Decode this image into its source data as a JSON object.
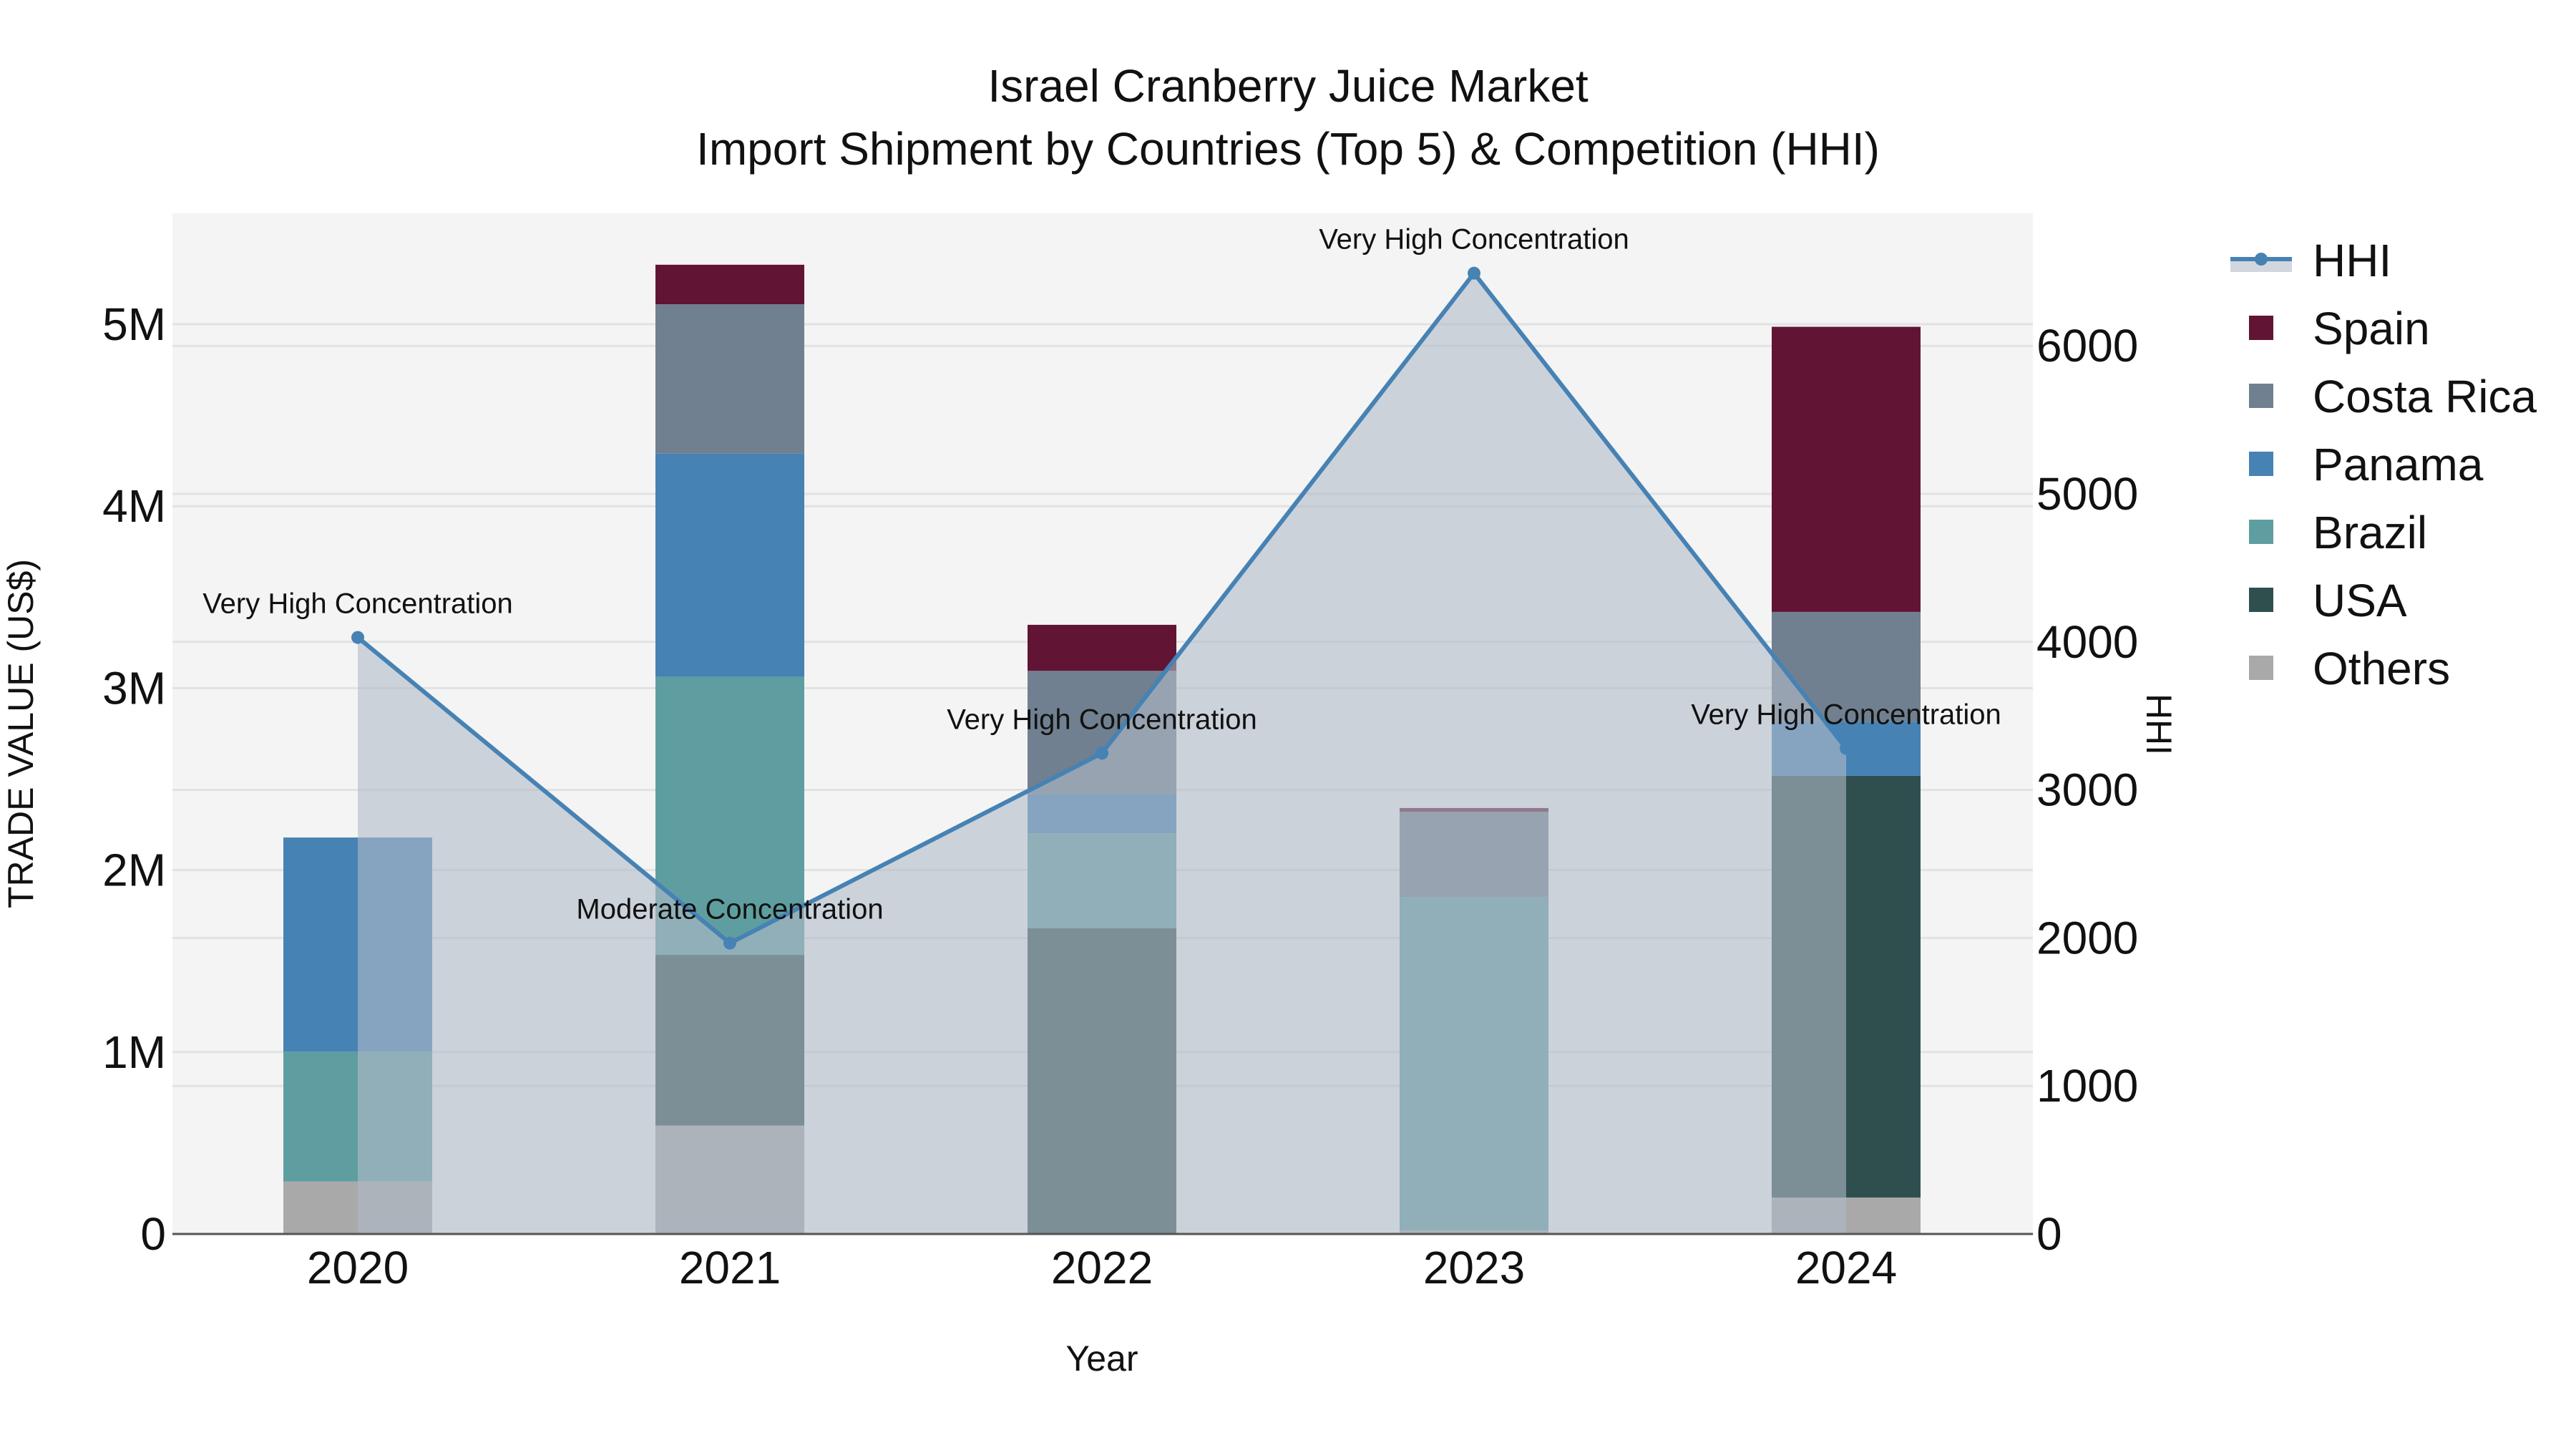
{
  "chart_data": {
    "type": "bar",
    "subtype": "stacked-bar-with-line-area",
    "title": "Israel Cranberry Juice Market",
    "subtitle": "Import Shipment by Countries (Top 5) & Competition (HHI)",
    "xlabel": "Year",
    "ylabel": "TRADE VALUE (US$)",
    "y2label": "HHI",
    "categories": [
      "2020",
      "2021",
      "2022",
      "2023",
      "2024"
    ],
    "ylim": [
      0,
      5600000
    ],
    "y_ticks": [
      0,
      1000000,
      2000000,
      3000000,
      4000000,
      5000000
    ],
    "y_tick_labels": [
      "0",
      "1M",
      "2M",
      "3M",
      "4M",
      "5M"
    ],
    "y2lim": [
      0,
      6900
    ],
    "y2_ticks": [
      0,
      1000,
      2000,
      3000,
      4000,
      5000,
      6000
    ],
    "y2_tick_labels": [
      "0",
      "1000",
      "2000",
      "3000",
      "4000",
      "5000",
      "6000"
    ],
    "grid": true,
    "legend_position": "right",
    "series": [
      {
        "name": "Others",
        "color": "#A9A9A9",
        "values": [
          288000,
          596000,
          0,
          20000,
          200000
        ]
      },
      {
        "name": "USA",
        "color": "#2F4F4F",
        "values": [
          0,
          938000,
          1680000,
          0,
          2318000
        ]
      },
      {
        "name": "Brazil",
        "color": "#5F9EA0",
        "values": [
          714000,
          1528000,
          522000,
          1832000,
          0
        ]
      },
      {
        "name": "Panama",
        "color": "#4682B4",
        "values": [
          1177000,
          1227000,
          216000,
          0,
          298000
        ]
      },
      {
        "name": "Costa Rica",
        "color": "#708090",
        "values": [
          0,
          821000,
          677000,
          469000,
          603000
        ]
      },
      {
        "name": "Spain",
        "color": "#611434",
        "values": [
          0,
          217000,
          253000,
          20000,
          1567000
        ]
      }
    ],
    "line_series": {
      "name": "HHI",
      "axis": "y2",
      "color": "#4682B4",
      "fill": "tozeroy",
      "values": [
        4030,
        1965,
        3248,
        6491,
        3280
      ],
      "annotations": [
        "Very High Concentration",
        "Moderate Concentration",
        "Very High Concentration",
        "Very High Concentration",
        "Very High Concentration"
      ]
    }
  },
  "legend": {
    "items": [
      {
        "label": "HHI",
        "kind": "line",
        "color": "#4682B4"
      },
      {
        "label": "Spain",
        "kind": "box",
        "color": "#611434"
      },
      {
        "label": "Costa Rica",
        "kind": "box",
        "color": "#708090"
      },
      {
        "label": "Panama",
        "kind": "box",
        "color": "#4682B4"
      },
      {
        "label": "Brazil",
        "kind": "box",
        "color": "#5F9EA0"
      },
      {
        "label": "USA",
        "kind": "box",
        "color": "#2F4F4F"
      },
      {
        "label": "Others",
        "kind": "box",
        "color": "#A9A9A9"
      }
    ]
  },
  "colors": {
    "plot_bg": "#F4F4F4",
    "grid": "#E2E2E2",
    "area_fill": "rgba(176,186,200,0.6)",
    "axis_line": "#555555"
  }
}
